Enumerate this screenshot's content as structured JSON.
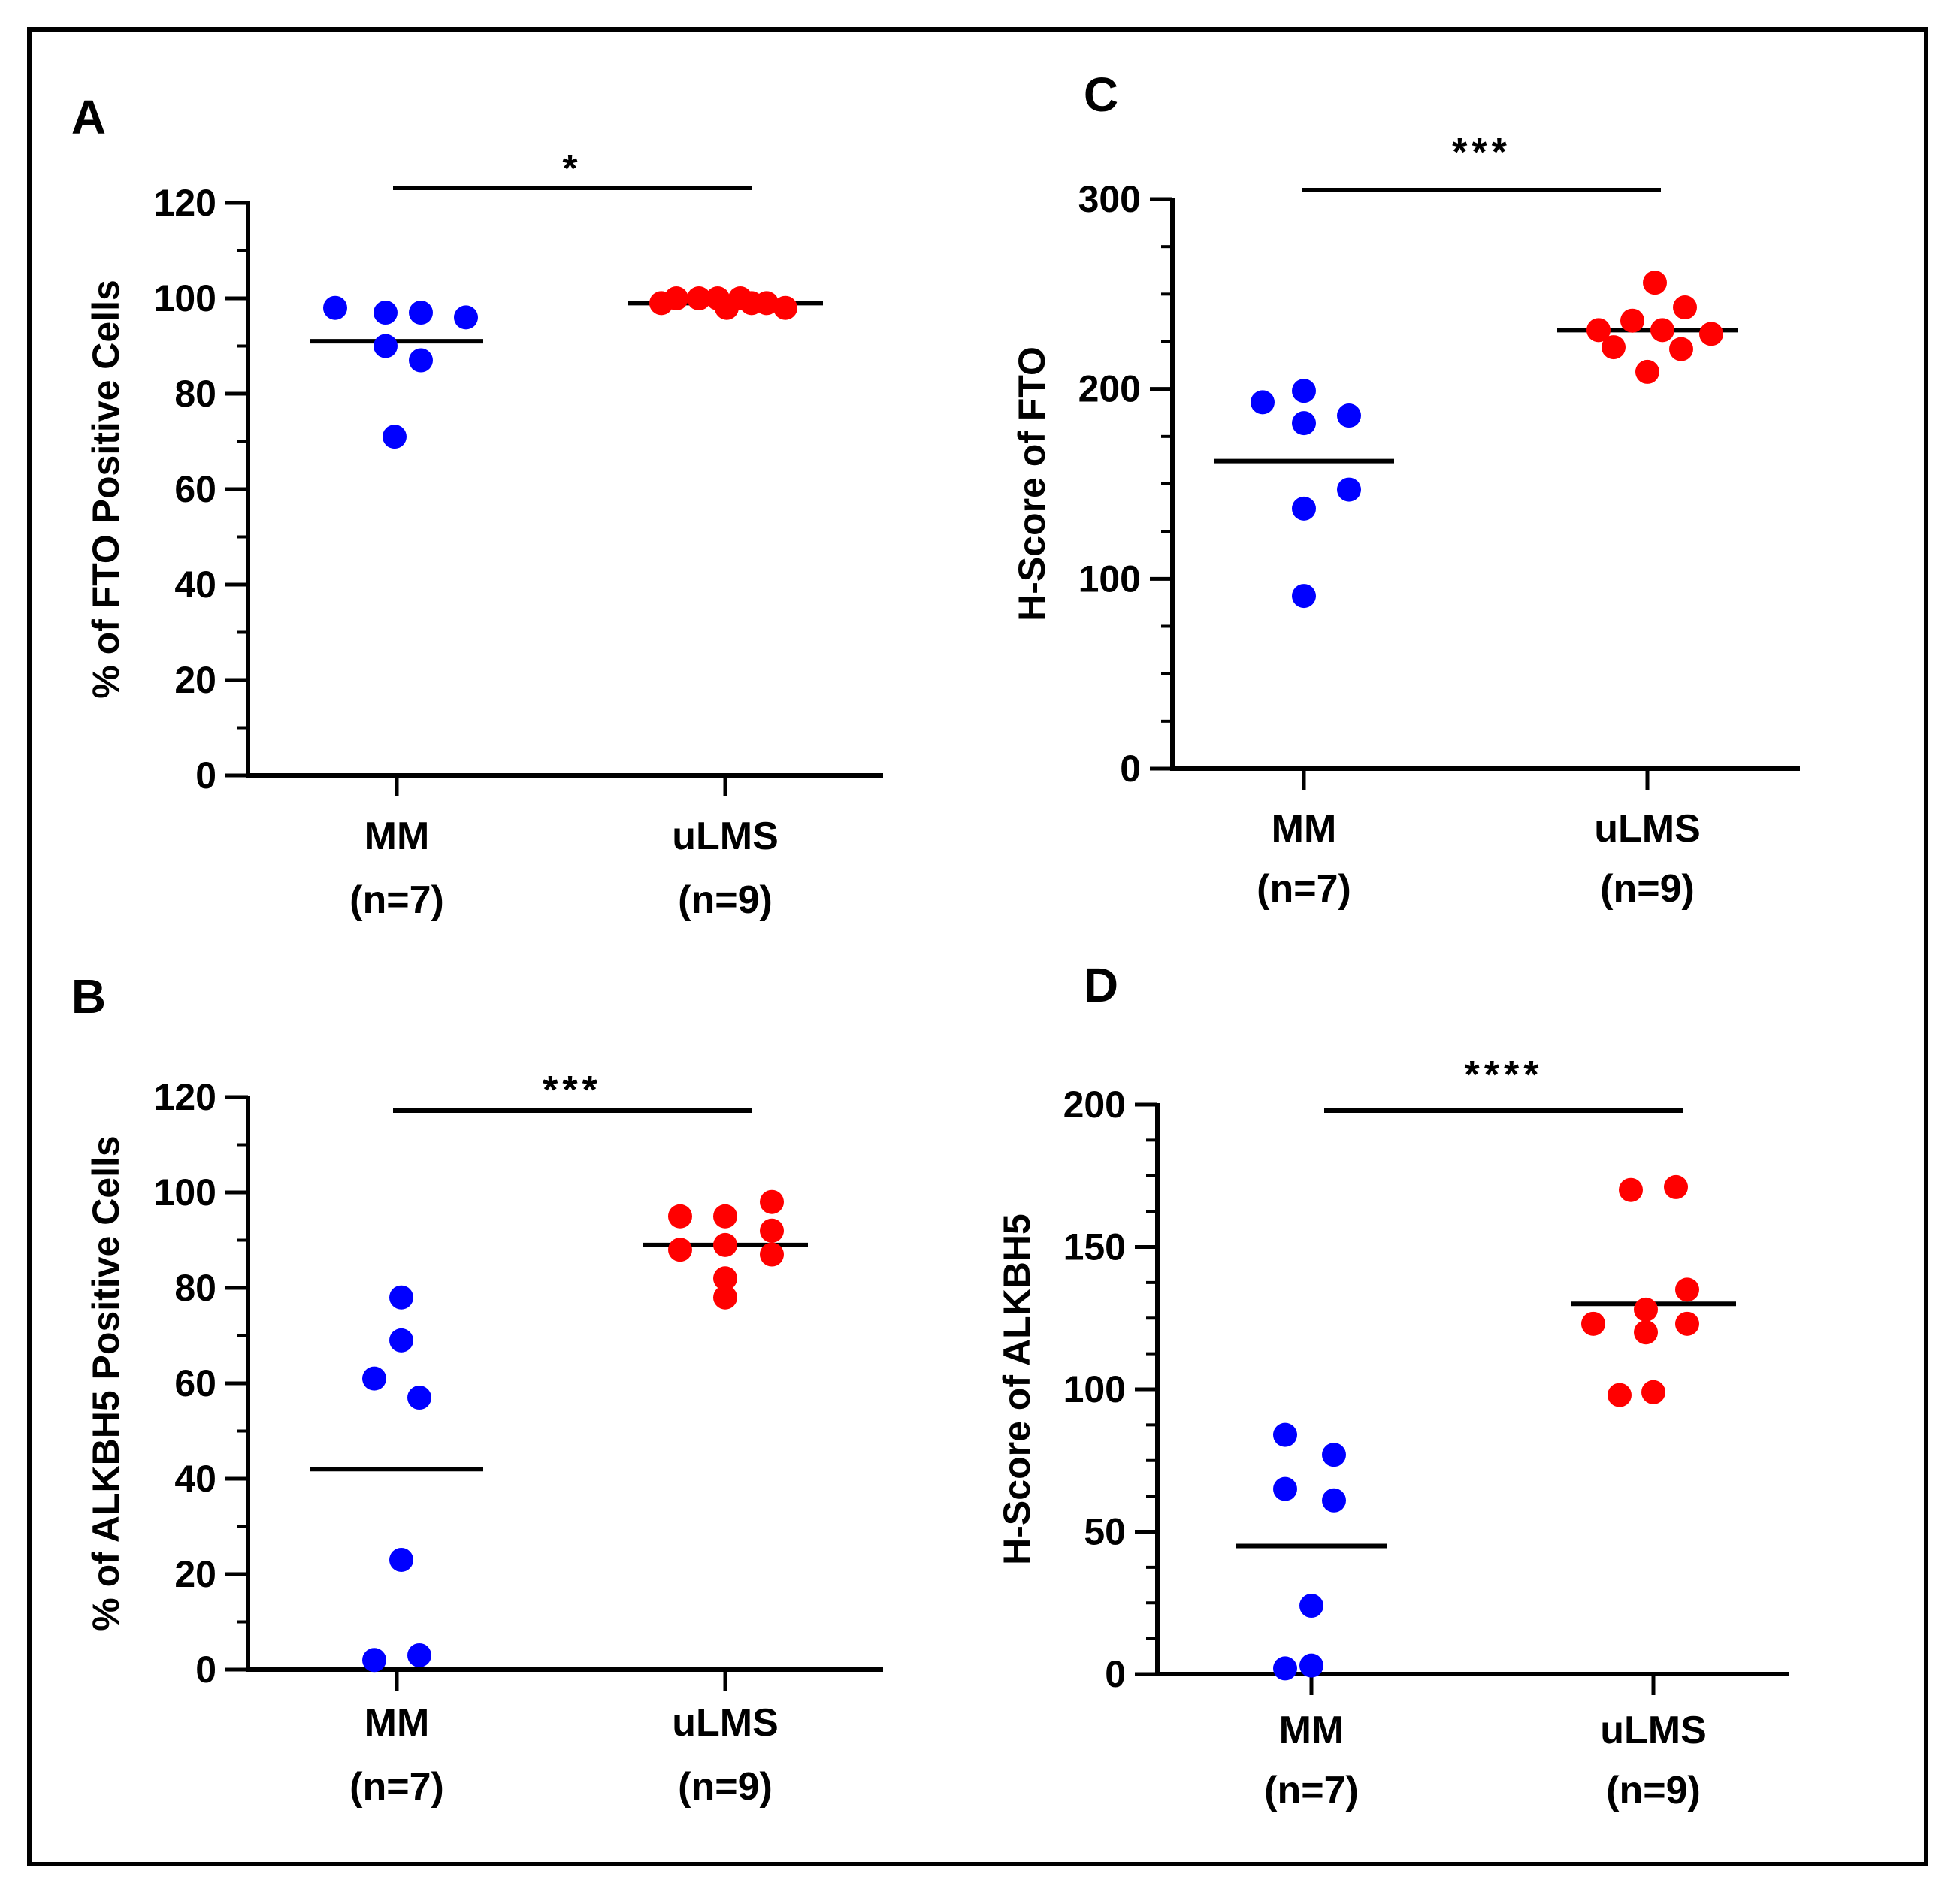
{
  "colors": {
    "mm": "#0000ff",
    "ulms": "#ff0000",
    "axis": "#000000"
  },
  "chart_data": [
    {
      "panel": "A",
      "type": "scatter",
      "title": "",
      "ylabel": "% of FTO Positive Cells",
      "ylim": [
        0,
        120
      ],
      "yticks": [
        "0",
        "20",
        "40",
        "60",
        "80",
        "100",
        "120"
      ],
      "categories": [
        {
          "name": "MM",
          "n": "(n=7)"
        },
        {
          "name": "uLMS",
          "n": "(n=9)"
        }
      ],
      "series": [
        {
          "name": "MM",
          "color": "#0000ff",
          "values": [
            98,
            97,
            97,
            96,
            90,
            87,
            71
          ],
          "mean": 91
        },
        {
          "name": "uLMS",
          "color": "#ff0000",
          "values": [
            99,
            100,
            100,
            100,
            98,
            100,
            99,
            99,
            98
          ],
          "mean": 99
        }
      ],
      "significance": "*"
    },
    {
      "panel": "C",
      "type": "scatter",
      "title": "",
      "ylabel": "H-Score of FTO",
      "ylim": [
        0,
        300
      ],
      "yticks": [
        "0",
        "100",
        "200",
        "300"
      ],
      "categories": [
        {
          "name": "MM",
          "n": "(n=7)"
        },
        {
          "name": "uLMS",
          "n": "(n=9)"
        }
      ],
      "series": [
        {
          "name": "MM",
          "color": "#0000ff",
          "values": [
            193,
            199,
            182,
            186,
            137,
            147,
            91
          ],
          "mean": 162
        },
        {
          "name": "uLMS",
          "color": "#ff0000",
          "values": [
            256,
            236,
            243,
            231,
            229,
            231,
            222,
            221,
            209
          ],
          "mean": 231
        }
      ],
      "significance": "***"
    },
    {
      "panel": "B",
      "type": "scatter",
      "title": "",
      "ylabel": "% of ALKBH5 Positive Cells",
      "ylim": [
        0,
        120
      ],
      "yticks": [
        "0",
        "20",
        "40",
        "60",
        "80",
        "100",
        "120"
      ],
      "categories": [
        {
          "name": "MM",
          "n": "(n=7)"
        },
        {
          "name": "uLMS",
          "n": "(n=9)"
        }
      ],
      "series": [
        {
          "name": "MM",
          "color": "#0000ff",
          "values": [
            78,
            69,
            61,
            57,
            23,
            2,
            3
          ],
          "mean": 42
        },
        {
          "name": "uLMS",
          "color": "#ff0000",
          "values": [
            95,
            95,
            98,
            92,
            88,
            89,
            87,
            82,
            78
          ],
          "mean": 89
        }
      ],
      "significance": "***"
    },
    {
      "panel": "D",
      "type": "scatter",
      "title": "",
      "ylabel": "H-Score of ALKBH5",
      "ylim": [
        0,
        200
      ],
      "yticks": [
        "0",
        "50",
        "100",
        "150",
        "200"
      ],
      "categories": [
        {
          "name": "MM",
          "n": "(n=7)"
        },
        {
          "name": "uLMS",
          "n": "(n=9)"
        }
      ],
      "series": [
        {
          "name": "MM",
          "color": "#0000ff",
          "values": [
            84,
            77,
            65,
            61,
            24,
            2,
            3
          ],
          "mean": 45
        },
        {
          "name": "uLMS",
          "color": "#ff0000",
          "values": [
            170,
            171,
            123,
            128,
            135,
            120,
            123,
            98,
            99
          ],
          "mean": 130
        }
      ],
      "significance": "****"
    }
  ]
}
